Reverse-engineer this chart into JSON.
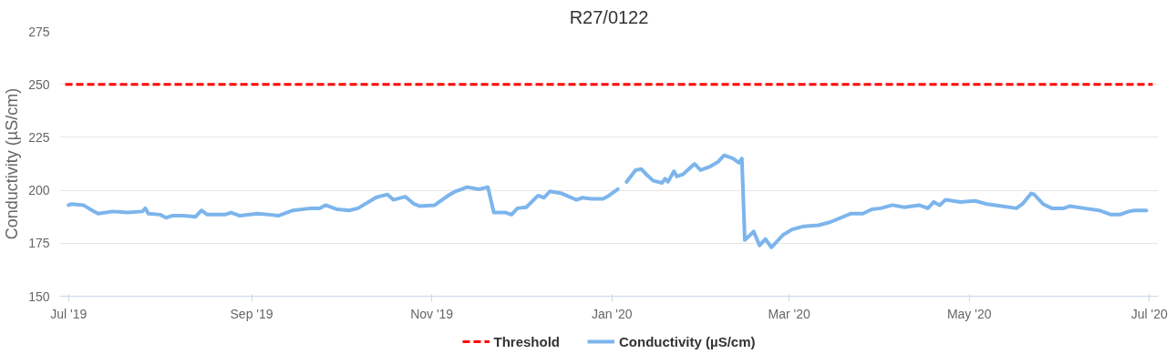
{
  "chart_data": {
    "type": "line",
    "title": "R27/0122",
    "ylabel": "Conductivity (µS/cm)",
    "x": [
      "2019-07-01",
      "2019-07-02",
      "2019-07-06",
      "2019-07-09",
      "2019-07-11",
      "2019-07-16",
      "2019-07-21",
      "2019-07-26",
      "2019-07-27",
      "2019-07-28",
      "2019-08-01",
      "2019-08-03",
      "2019-08-05",
      "2019-08-09",
      "2019-08-13",
      "2019-08-15",
      "2019-08-17",
      "2019-08-23",
      "2019-08-25",
      "2019-08-28",
      "2019-09-03",
      "2019-09-07",
      "2019-09-10",
      "2019-09-15",
      "2019-09-21",
      "2019-09-24",
      "2019-09-26",
      "2019-09-30",
      "2019-10-04",
      "2019-10-07",
      "2019-10-13",
      "2019-10-14",
      "2019-10-17",
      "2019-10-19",
      "2019-10-23",
      "2019-10-26",
      "2019-10-28",
      "2019-11-02",
      "2019-11-06",
      "2019-11-09",
      "2019-11-13",
      "2019-11-17",
      "2019-11-20",
      "2019-11-22",
      "2019-11-26",
      "2019-11-28",
      "2019-11-30",
      "2019-12-03",
      "2019-12-07",
      "2019-12-09",
      "2019-12-11",
      "2019-12-15",
      "2019-12-20",
      "2019-12-22",
      "2019-12-25",
      "2019-12-29",
      "2019-12-31",
      "2020-01-03",
      "2020-01-05",
      "2020-01-06",
      "2020-01-09",
      "2020-01-11",
      "2020-01-13",
      "2020-01-15",
      "2020-01-18",
      "2020-01-19",
      "2020-01-20",
      "2020-01-22",
      "2020-01-23",
      "2020-01-25",
      "2020-01-29",
      "2020-01-31",
      "2020-02-03",
      "2020-02-06",
      "2020-02-08",
      "2020-02-11",
      "2020-02-13",
      "2020-02-14",
      "2020-02-15",
      "2020-02-18",
      "2020-02-20",
      "2020-02-22",
      "2020-02-24",
      "2020-02-28",
      "2020-03-02",
      "2020-03-06",
      "2020-03-11",
      "2020-03-15",
      "2020-03-22",
      "2020-03-26",
      "2020-03-29",
      "2020-04-01",
      "2020-04-05",
      "2020-04-09",
      "2020-04-14",
      "2020-04-17",
      "2020-04-19",
      "2020-04-21",
      "2020-04-23",
      "2020-04-28",
      "2020-05-03",
      "2020-05-07",
      "2020-05-12",
      "2020-05-17",
      "2020-05-19",
      "2020-05-22",
      "2020-05-23",
      "2020-05-26",
      "2020-05-29",
      "2020-06-02",
      "2020-06-04",
      "2020-06-09",
      "2020-06-14",
      "2020-06-18",
      "2020-06-21",
      "2020-06-24",
      "2020-06-26",
      "2020-06-30"
    ],
    "series": [
      {
        "name": "Conductivity (µS/cm)",
        "color": "#7cb5ec",
        "values": [
          193,
          193.5,
          193,
          190.5,
          189,
          190,
          189.5,
          190,
          191.5,
          189,
          188.5,
          187,
          188,
          188,
          187.5,
          190.5,
          188.5,
          188.5,
          189.5,
          188,
          189,
          188.5,
          188,
          190.5,
          191.5,
          191.5,
          193,
          191,
          190.5,
          191.5,
          196.5,
          197,
          198,
          195.5,
          197,
          193.5,
          192.5,
          193,
          197,
          199.5,
          201.5,
          200.5,
          201.5,
          189.5,
          189.5,
          188.5,
          191.5,
          192,
          197.5,
          196.5,
          199.5,
          198.5,
          195.5,
          196.5,
          196,
          196,
          197.5,
          200.5,
          null,
          204,
          209.5,
          210,
          207,
          204.5,
          203.5,
          205.5,
          204,
          209,
          206.5,
          207.5,
          212.5,
          209.5,
          211,
          213.5,
          216.5,
          215,
          213,
          215,
          176.5,
          180.5,
          174,
          177,
          173,
          179,
          181.5,
          183,
          183.5,
          185,
          189,
          189,
          191,
          191.5,
          193,
          192,
          193,
          191.5,
          194.5,
          193,
          195.5,
          194.5,
          195,
          193.5,
          192.5,
          191.5,
          193.5,
          198.5,
          198,
          193.5,
          191.5,
          191.5,
          192.5,
          191.5,
          190.5,
          188.5,
          188.5,
          190,
          190.5,
          190.5
        ]
      }
    ],
    "ref_lines": [
      {
        "axis": "y",
        "value": 250,
        "label": "Threshold",
        "color": "#ff0000",
        "line_style": "dashed"
      }
    ],
    "xlim": [
      "2019-06-28",
      "2020-07-04"
    ],
    "xticks": [
      {
        "value": "2019-07-01",
        "label": "Jul '19"
      },
      {
        "value": "2019-09-01",
        "label": "Sep '19"
      },
      {
        "value": "2019-11-01",
        "label": "Nov '19"
      },
      {
        "value": "2020-01-01",
        "label": "Jan '20"
      },
      {
        "value": "2020-03-01",
        "label": "Mar '20"
      },
      {
        "value": "2020-05-01",
        "label": "May '20"
      },
      {
        "value": "2020-07-01",
        "label": "Jul '20"
      }
    ],
    "ylim": [
      150,
      275
    ],
    "yticks": [
      150,
      175,
      200,
      225,
      250,
      275
    ],
    "grid": "y",
    "legend": "bottom",
    "marker": "none",
    "line_style": "solid"
  }
}
